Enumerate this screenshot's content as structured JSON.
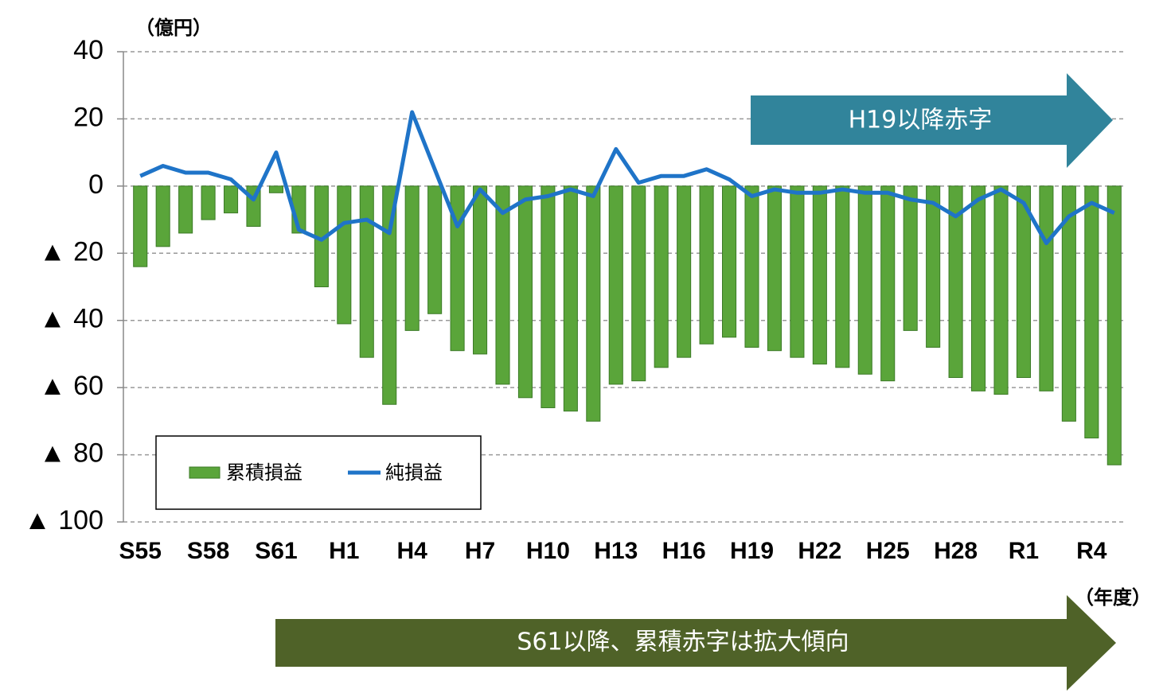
{
  "chart_data": {
    "type": "bar-line",
    "y_unit": "（億円）",
    "x_unit": "（年度）",
    "categories": [
      "S55",
      null,
      null,
      "S58",
      null,
      null,
      "S61",
      null,
      null,
      "H1",
      null,
      null,
      "H4",
      null,
      null,
      "H7",
      null,
      null,
      "H10",
      null,
      null,
      "H13",
      null,
      null,
      "H16",
      null,
      null,
      "H19",
      null,
      null,
      "H22",
      null,
      null,
      "H25",
      null,
      null,
      "H28",
      null,
      null,
      "R1",
      null,
      null,
      "R4",
      null
    ],
    "series": [
      {
        "name": "累積損益",
        "type": "bar",
        "color": "#5aa53a",
        "values": [
          -24,
          -18,
          -14,
          -10,
          -8,
          -12,
          -2,
          -14,
          -30,
          -41,
          -51,
          -65,
          -43,
          -38,
          -49,
          -50,
          -59,
          -63,
          -66,
          -67,
          -70,
          -59,
          -58,
          -54,
          -51,
          -47,
          -45,
          -48,
          -49,
          -51,
          -53,
          -54,
          -56,
          -58,
          -43,
          -48,
          -57,
          -61,
          -62,
          -57,
          -61,
          -70,
          -75,
          -83
        ]
      },
      {
        "name": "純損益",
        "type": "line",
        "color": "#1f74c8",
        "values": [
          3,
          6,
          4,
          4,
          2,
          -4,
          10,
          -13,
          -16,
          -11,
          -10,
          -14,
          22,
          5,
          -12,
          -1,
          -8,
          -4,
          -3,
          -1,
          -3,
          11,
          1,
          3,
          3,
          5,
          2,
          -3,
          -1,
          -2,
          -2,
          -1,
          -2,
          -2,
          -4,
          -5,
          -9,
          -4,
          -1,
          -5,
          -17,
          -9,
          -5,
          -8
        ]
      }
    ],
    "ylim": [
      -100,
      40
    ],
    "yticks": [
      40,
      20,
      0,
      {
        "value": -20,
        "label": "▲ 20"
      },
      {
        "value": -40,
        "label": "▲ 40"
      },
      {
        "value": -60,
        "label": "▲ 60"
      },
      {
        "value": -80,
        "label": "▲ 80"
      },
      {
        "value": -100,
        "label": "▲ 100"
      }
    ],
    "grid": true,
    "annotations": [
      "H19以降赤字",
      "S61以降、累積赤字は拡大傾向"
    ]
  }
}
